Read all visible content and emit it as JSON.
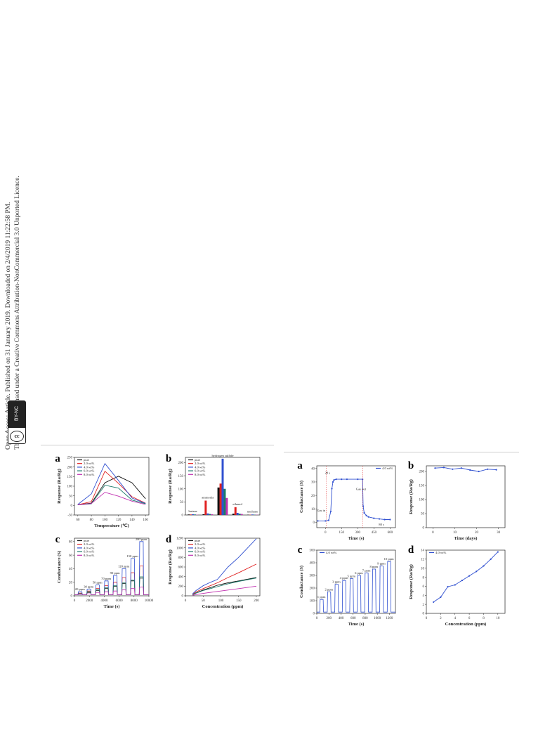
{
  "sidebar": {
    "line1": "Open Access Article. Published on 31 January 2019. Downloaded on 2/4/2019 11:22:58 PM.",
    "line2": "This article is licensed under a Creative Commons Attribution-NonCommercial 3.0 Unported Licence.",
    "badge_icon": "cc",
    "badge_text": "BY-NC"
  },
  "chart_data": [
    {
      "panel": "a",
      "type": "line",
      "group": "left",
      "xlabel": "Temperature (℃)",
      "ylabel": "Response (Ra/Rg)",
      "xlim": [
        55,
        165
      ],
      "ylim": [
        -50,
        250
      ],
      "xticks": [
        60,
        80,
        100,
        120,
        140,
        160
      ],
      "yticks": [
        -50,
        0,
        50,
        100,
        150,
        200,
        250
      ],
      "legend": "top-left",
      "series": [
        {
          "name": "pure",
          "color": "#111111",
          "x": [
            60,
            80,
            100,
            120,
            140,
            160
          ],
          "y": [
            3,
            12,
            118,
            152,
            118,
            35
          ]
        },
        {
          "name": "2.0 wt%",
          "color": "#e02020",
          "x": [
            60,
            80,
            100,
            120,
            140,
            160
          ],
          "y": [
            3,
            20,
            178,
            115,
            45,
            12
          ]
        },
        {
          "name": "4.0 wt%",
          "color": "#3050d0",
          "x": [
            60,
            80,
            100,
            120,
            140,
            160
          ],
          "y": [
            5,
            60,
            218,
            130,
            38,
            10
          ]
        },
        {
          "name": "6.0 wt%",
          "color": "#1a7a6a",
          "x": [
            60,
            80,
            100,
            120,
            140,
            160
          ],
          "y": [
            3,
            8,
            105,
            90,
            28,
            8
          ]
        },
        {
          "name": "8.0 wt%",
          "color": "#c030b0",
          "x": [
            60,
            80,
            100,
            120,
            140,
            160
          ],
          "y": [
            3,
            10,
            68,
            48,
            22,
            5
          ]
        }
      ]
    },
    {
      "panel": "b",
      "type": "bar",
      "group": "left",
      "ylabel": "Response (Ra/Rg)",
      "ylim": [
        0,
        220
      ],
      "yticks": [
        0,
        50,
        100,
        150,
        200
      ],
      "categories": [
        "butane",
        "ammonia",
        "hydrogen sulfide",
        "ethanol",
        "methane"
      ],
      "legend": "top-left",
      "series": [
        {
          "name": "pure",
          "color": "#111111",
          "values": [
            2,
            3,
            105,
            5,
            1
          ]
        },
        {
          "name": "2.0 wt%",
          "color": "#e02020",
          "values": [
            2,
            55,
            120,
            30,
            1
          ]
        },
        {
          "name": "4.0 wt%",
          "color": "#3050d0",
          "values": [
            3,
            6,
            215,
            8,
            2
          ]
        },
        {
          "name": "6.0 wt%",
          "color": "#1a7a6a",
          "values": [
            2,
            4,
            100,
            5,
            1
          ]
        },
        {
          "name": "8.0 wt%",
          "color": "#c030b0",
          "values": [
            1,
            3,
            65,
            4,
            1
          ]
        }
      ]
    },
    {
      "panel": "c",
      "type": "line",
      "group": "left",
      "xlabel": "Time (s)",
      "ylabel": "Conductance (S)",
      "xlim": [
        0,
        10000
      ],
      "ylim": [
        0,
        85
      ],
      "xticks": [
        0,
        2000,
        4000,
        6000,
        8000,
        10000
      ],
      "yticks": [
        0,
        20,
        40,
        60,
        80
      ],
      "legend": "top-left",
      "pulse_labels": [
        "20 ppm",
        "30 ppm",
        "50 ppm",
        "70 ppm",
        "90 ppm",
        "120 ppm",
        "150 ppm",
        "200 ppm"
      ],
      "series": [
        {
          "name": "pure",
          "color": "#111111",
          "peaks": [
            3,
            5,
            8,
            11,
            14,
            18,
            22,
            26
          ]
        },
        {
          "name": "2.0 wt%",
          "color": "#e02020",
          "peaks": [
            4,
            7,
            11,
            15,
            20,
            27,
            34,
            44
          ]
        },
        {
          "name": "4.0 wt%",
          "color": "#3050d0",
          "peaks": [
            6,
            10,
            16,
            22,
            30,
            40,
            55,
            80
          ]
        },
        {
          "name": "6.0 wt%",
          "color": "#1a7a6a",
          "peaks": [
            3,
            6,
            9,
            12,
            15,
            19,
            23,
            28
          ]
        },
        {
          "name": "8.0 wt%",
          "color": "#c030b0",
          "peaks": [
            2,
            3,
            5,
            6,
            7,
            9,
            11,
            13
          ]
        }
      ]
    },
    {
      "panel": "d",
      "type": "line",
      "group": "left",
      "xlabel": "Concentration (ppm)",
      "ylabel": "Response (Ra/Rg)",
      "xlim": [
        0,
        210
      ],
      "ylim": [
        0,
        1200
      ],
      "xticks": [
        0,
        50,
        100,
        150,
        200
      ],
      "yticks": [
        0,
        200,
        400,
        600,
        800,
        1000,
        1200
      ],
      "legend": "top-left",
      "series": [
        {
          "name": "pure",
          "color": "#111111",
          "x": [
            20,
            30,
            50,
            70,
            90,
            120,
            150,
            200
          ],
          "y": [
            25,
            60,
            120,
            170,
            220,
            270,
            310,
            380
          ]
        },
        {
          "name": "2.0 wt%",
          "color": "#e02020",
          "x": [
            20,
            30,
            50,
            70,
            90,
            120,
            150,
            200
          ],
          "y": [
            30,
            80,
            150,
            210,
            270,
            380,
            480,
            660
          ]
        },
        {
          "name": "4.0 wt%",
          "color": "#3050d0",
          "x": [
            20,
            30,
            50,
            70,
            90,
            120,
            150,
            200
          ],
          "y": [
            40,
            110,
            210,
            280,
            340,
            600,
            800,
            1190
          ]
        },
        {
          "name": "6.0 wt%",
          "color": "#1a7a6a",
          "x": [
            20,
            30,
            50,
            70,
            90,
            120,
            150,
            200
          ],
          "y": [
            20,
            55,
            110,
            150,
            190,
            250,
            300,
            370
          ]
        },
        {
          "name": "8.0 wt%",
          "color": "#c030b0",
          "x": [
            20,
            30,
            50,
            70,
            90,
            120,
            150,
            200
          ],
          "y": [
            10,
            25,
            50,
            70,
            90,
            120,
            150,
            200
          ]
        }
      ]
    },
    {
      "panel": "a",
      "type": "line",
      "group": "right",
      "xlabel": "Time (s)",
      "ylabel": "Conductance (S)",
      "xlim": [
        -80,
        650
      ],
      "ylim": [
        -4,
        42
      ],
      "xticks": [
        0,
        150,
        300,
        450,
        600
      ],
      "yticks": [
        0,
        10,
        20,
        30,
        40
      ],
      "legend": "top-right",
      "annotations": [
        "20 s",
        "Gas in",
        "Gas out",
        "80 s"
      ],
      "series": [
        {
          "name": "4.0 wt%",
          "color": "#3050d0",
          "x": [
            -70,
            0,
            30,
            50,
            60,
            70,
            80,
            100,
            150,
            200,
            300,
            345,
            350,
            360,
            380,
            400,
            450,
            500,
            550,
            600
          ],
          "y": [
            1,
            1,
            1.5,
            8,
            25,
            30,
            31.5,
            32,
            32,
            32,
            32,
            32,
            12,
            7,
            5,
            4,
            3,
            2.5,
            2,
            2
          ]
        }
      ]
    },
    {
      "panel": "b",
      "type": "line",
      "group": "right",
      "xlabel": "Time (days)",
      "ylabel": "Response (Ra/Rg)",
      "xlim": [
        -3,
        33
      ],
      "ylim": [
        0,
        220
      ],
      "xticks": [
        0,
        10,
        20,
        30
      ],
      "yticks": [
        0,
        50,
        100,
        150,
        200
      ],
      "series": [
        {
          "name": "4.0 wt%",
          "color": "#3050d0",
          "x": [
            1,
            5,
            9,
            13,
            17,
            21,
            25,
            29
          ],
          "y": [
            212,
            214,
            208,
            212,
            205,
            200,
            208,
            206
          ]
        }
      ]
    },
    {
      "panel": "c",
      "type": "line",
      "group": "right",
      "xlabel": "Time (s)",
      "ylabel": "Conductance (S)",
      "xlim": [
        0,
        1300
      ],
      "ylim": [
        0,
        500
      ],
      "xticks": [
        0,
        200,
        400,
        600,
        800,
        1000,
        1200
      ],
      "yticks": [
        0,
        100,
        200,
        300,
        400,
        500
      ],
      "legend": "top-left",
      "pulse_labels": [
        "1 ppm",
        "2 ppm",
        "3 ppm",
        "4 ppm",
        "5 ppm",
        "6 ppm",
        "7 ppm",
        "8 ppm",
        "9 ppm",
        "10 ppm"
      ],
      "series": [
        {
          "name": "4.0 wt%",
          "color": "#3050d0",
          "peaks": [
            110,
            170,
            230,
            260,
            275,
            300,
            320,
            350,
            375,
            410
          ]
        }
      ]
    },
    {
      "panel": "d",
      "type": "line",
      "group": "right",
      "xlabel": "Concentration (ppm)",
      "ylabel": "Response (Ra/Rg)",
      "xlim": [
        0,
        11
      ],
      "ylim": [
        0,
        14
      ],
      "xticks": [
        0,
        2,
        4,
        6,
        8,
        10
      ],
      "yticks": [
        0,
        2,
        4,
        6,
        8,
        10,
        12,
        14
      ],
      "legend": "top-left",
      "series": [
        {
          "name": "4.0 wt%",
          "color": "#3050d0",
          "x": [
            1,
            2,
            3,
            4,
            5,
            6,
            7,
            8,
            9,
            10
          ],
          "y": [
            2.5,
            3.6,
            5.9,
            6.3,
            7.3,
            8.3,
            9.3,
            10.5,
            12.0,
            13.6
          ]
        }
      ]
    }
  ]
}
